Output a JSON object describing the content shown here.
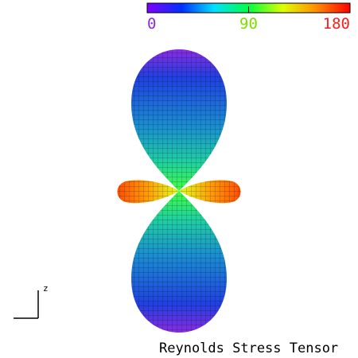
{
  "colorbar": {
    "range": [
      0,
      180
    ],
    "ticks": [
      0,
      90,
      180
    ],
    "tick_colors": [
      "#8a2be2",
      "#7fdc00",
      "#ff1a1a"
    ]
  },
  "axis_indicator": {
    "label": "z"
  },
  "caption": "Reynolds Stress Tensor"
}
